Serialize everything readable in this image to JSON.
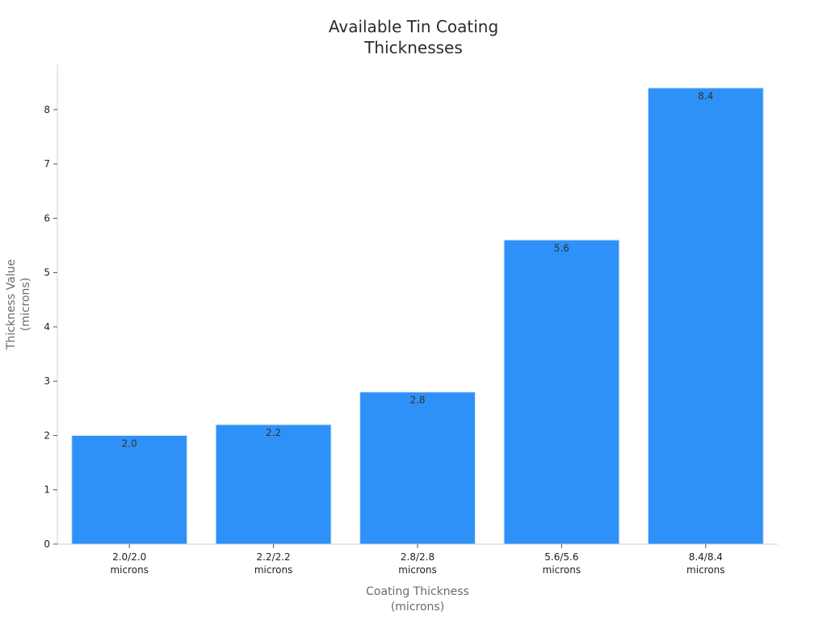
{
  "chart_data": {
    "type": "bar",
    "title": "Available Tin Coating\nThicknesses",
    "xlabel": [
      "Coating Thickness",
      "(microns)"
    ],
    "ylabel": [
      "Thickness Value",
      "(microns)"
    ],
    "categories": [
      [
        "2.0/2.0",
        "microns"
      ],
      [
        "2.2/2.2",
        "microns"
      ],
      [
        "2.8/2.8",
        "microns"
      ],
      [
        "5.6/5.6",
        "microns"
      ],
      [
        "8.4/8.4",
        "microns"
      ]
    ],
    "values": [
      2.0,
      2.2,
      2.8,
      5.6,
      8.4
    ],
    "data_labels": [
      "2.0",
      "2.2",
      "2.8",
      "5.6",
      "8.4"
    ],
    "ylim": [
      0,
      8.83
    ],
    "yticks": [
      0,
      1,
      2,
      3,
      4,
      5,
      6,
      7,
      8
    ],
    "grid": false,
    "legend": "none",
    "bar_color": "#2e91f7",
    "bar_edge_color": "#cfe3fb"
  }
}
